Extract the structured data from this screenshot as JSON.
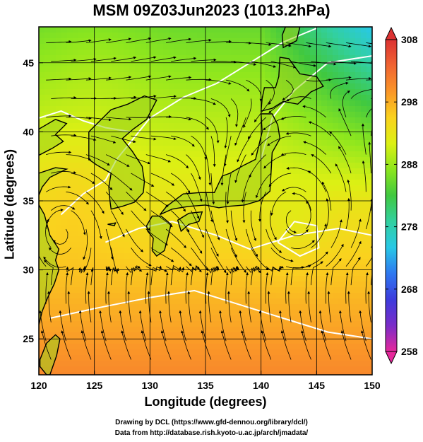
{
  "title": "MSM 09Z03Jun2023 (1013.2hPa)",
  "axes": {
    "xlabel": "Longitude (degrees)",
    "ylabel": "Latitude  (degrees)",
    "x_ticks": [
      "120",
      "125",
      "130",
      "135",
      "140",
      "145",
      "150"
    ],
    "y_ticks": [
      "25",
      "30",
      "35",
      "40",
      "45"
    ],
    "xlim": [
      120,
      150
    ],
    "ylim": [
      22.4,
      47.6
    ]
  },
  "colorbar": {
    "ticks": [
      "308",
      "298",
      "288",
      "278",
      "268",
      "258"
    ],
    "range": [
      258,
      308
    ],
    "stops": [
      "#e6289b",
      "#7a2cc8",
      "#3d3cdd",
      "#2e78f0",
      "#28c8e6",
      "#32d0a0",
      "#40c840",
      "#8ce61e",
      "#dcf014",
      "#fad21e",
      "#fa9628",
      "#f06432",
      "#dc3232"
    ]
  },
  "credits": {
    "line1": "Drawing by DCL (https://www.gfd-dennou.org/library/dcl/)",
    "line2": "Data from http://database.rish.kyoto-u.ac.jp/arch/jmadata/"
  },
  "colors": {
    "land_outline": "#000000",
    "isotherm": "#ffffff",
    "streamline": "#000000"
  }
}
